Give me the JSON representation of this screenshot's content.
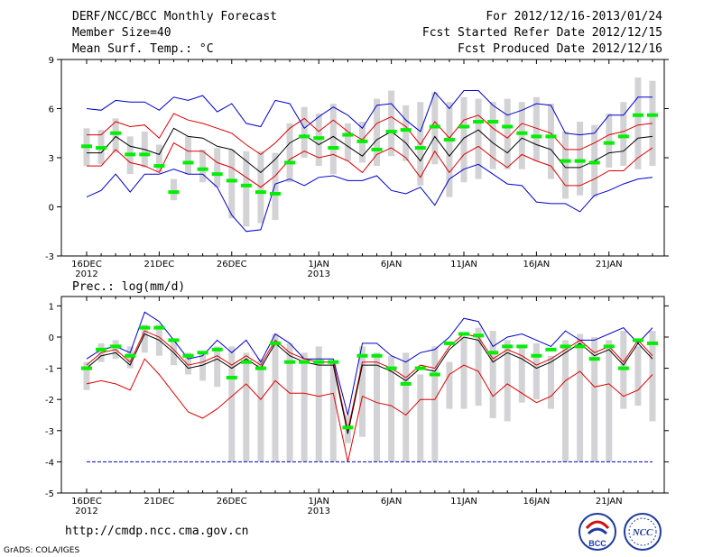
{
  "header": {
    "title": "DERF/NCC/BCC Monthly Forecast",
    "member_size": "Member Size=40",
    "variable": "Mean Surf. Temp.: °C",
    "period": "For 2012/12/16-2013/01/24",
    "started": "Fcst Started Refer Date 2012/12/15",
    "produced": "Fcst Produced Date 2012/12/16"
  },
  "footer": {
    "url": "http://cmdp.ncc.cma.gov.cn",
    "grads": "GrADS: COLA/IGES",
    "logo_bcc": "BCC",
    "logo_ncc": "NCC"
  },
  "colors": {
    "box": "#d3d3d6",
    "median": "#00ee00",
    "mean": "#000000",
    "sd": "#dd0000",
    "extreme": "#0000cc"
  },
  "chart_data": [
    {
      "type": "box",
      "title": "Mean Surf. Temp.: °C",
      "ylim": [
        -3,
        9
      ],
      "yticks": [
        "9",
        "6",
        "3",
        "0",
        "-3"
      ],
      "ytick_values": [
        9,
        6,
        3,
        0,
        -3
      ],
      "xticks": [
        "16DEC",
        "21DEC",
        "26DEC",
        "1JAN",
        "6JAN",
        "11JAN",
        "16JAN",
        "21JAN"
      ],
      "xtick_days": [
        1,
        6,
        11,
        17,
        22,
        27,
        32,
        37
      ],
      "xtick_years": [
        {
          "day": 1,
          "label": "2012"
        },
        {
          "day": 17,
          "label": "2013"
        }
      ],
      "days": 40,
      "box_low": [
        2.5,
        2.6,
        3.3,
        2.0,
        2.4,
        2.1,
        0.4,
        2.0,
        1.5,
        1.2,
        -0.7,
        -1.2,
        -1.0,
        -0.8,
        1.5,
        3.0,
        2.5,
        2.0,
        2.8,
        2.7,
        2.5,
        3.1,
        2.8,
        1.3,
        2.6,
        0.6,
        1.5,
        1.7,
        2.3,
        2.3,
        2.3,
        2.8,
        1.7,
        0.5,
        0.7,
        0.6,
        2.4,
        2.5,
        2.3,
        2.5
      ],
      "box_high": [
        4.8,
        4.7,
        5.4,
        4.3,
        4.6,
        3.8,
        1.7,
        4.3,
        3.5,
        3.6,
        3.5,
        3.4,
        3.4,
        3.3,
        5.1,
        6.1,
        5.7,
        6.3,
        5.1,
        5.2,
        6.6,
        7.1,
        6.2,
        6.4,
        7.0,
        6.4,
        6.7,
        6.6,
        6.4,
        6.6,
        6.4,
        6.7,
        6.3,
        4.6,
        5.2,
        5.0,
        5.7,
        6.4,
        7.9,
        7.7
      ],
      "median": [
        3.7,
        3.6,
        4.5,
        3.2,
        3.2,
        2.5,
        0.9,
        2.7,
        2.3,
        2.0,
        1.6,
        1.3,
        0.9,
        0.8,
        2.7,
        4.3,
        4.2,
        3.6,
        4.4,
        4.0,
        3.5,
        4.6,
        4.7,
        3.6,
        4.9,
        4.1,
        4.9,
        5.2,
        5.2,
        4.9,
        4.5,
        4.3,
        4.3,
        2.8,
        2.8,
        2.7,
        3.9,
        4.3,
        5.6,
        5.6
      ],
      "mean": [
        3.3,
        3.3,
        4.3,
        3.7,
        3.5,
        3.2,
        4.8,
        4.3,
        4.2,
        3.7,
        3.5,
        2.8,
        2.1,
        2.9,
        3.9,
        4.4,
        3.8,
        4.3,
        3.7,
        3.1,
        4.1,
        4.6,
        3.9,
        2.8,
        4.3,
        3.1,
        4.2,
        4.7,
        3.9,
        3.3,
        4.2,
        3.8,
        3.5,
        2.4,
        2.4,
        2.8,
        3.3,
        3.4,
        4.2,
        4.3
      ],
      "sd_high": [
        4.4,
        4.4,
        5.2,
        4.9,
        5.0,
        4.2,
        5.7,
        5.3,
        5.1,
        4.8,
        4.5,
        3.8,
        3.2,
        3.9,
        4.8,
        5.4,
        4.6,
        5.3,
        4.6,
        4.1,
        5.1,
        5.5,
        4.9,
        3.8,
        5.2,
        4.2,
        5.3,
        5.6,
        4.8,
        4.2,
        5.1,
        4.8,
        4.5,
        3.5,
        3.5,
        3.9,
        4.4,
        4.6,
        5.0,
        5.1
      ],
      "sd_low": [
        2.5,
        2.5,
        3.5,
        2.7,
        2.5,
        2.1,
        3.9,
        3.4,
        3.4,
        2.7,
        2.4,
        1.8,
        1.2,
        1.9,
        2.9,
        3.4,
        3.0,
        3.2,
        2.8,
        2.1,
        3.2,
        3.6,
        3.0,
        1.8,
        3.4,
        2.1,
        3.2,
        3.7,
        3.0,
        2.4,
        3.2,
        2.8,
        2.5,
        1.3,
        1.3,
        1.7,
        2.2,
        2.2,
        3.0,
        3.6
      ],
      "max": [
        6.0,
        5.9,
        6.5,
        6.4,
        6.4,
        5.9,
        6.7,
        6.5,
        6.8,
        5.8,
        6.3,
        5.1,
        4.9,
        6.5,
        6.3,
        4.8,
        5.5,
        6.1,
        5.6,
        4.8,
        6.2,
        6.3,
        5.3,
        4.6,
        7.0,
        6.0,
        7.1,
        7.1,
        6.2,
        5.6,
        5.9,
        6.3,
        6.2,
        4.5,
        4.4,
        4.5,
        5.6,
        5.6,
        6.7,
        6.7
      ],
      "min": [
        0.6,
        1.0,
        2.0,
        0.9,
        2.0,
        2.0,
        2.3,
        2.0,
        2.0,
        1.2,
        -0.5,
        -1.5,
        -1.4,
        1.4,
        1.7,
        1.3,
        1.8,
        1.9,
        1.6,
        1.6,
        1.9,
        1.0,
        0.8,
        1.2,
        0.1,
        1.7,
        2.3,
        2.6,
        2.0,
        1.4,
        1.3,
        0.3,
        0.2,
        0.2,
        -0.3,
        0.7,
        1.0,
        1.4,
        1.7,
        1.8
      ]
    },
    {
      "type": "box",
      "title": "Prec.: log(mm/d)",
      "ylim": [
        -5,
        1.3
      ],
      "yticks": [
        "1",
        "0",
        "-1",
        "-2",
        "-3",
        "-4",
        "-5"
      ],
      "ytick_values": [
        1,
        0,
        -1,
        -2,
        -3,
        -4,
        -5
      ],
      "xticks": [
        "16DEC",
        "21DEC",
        "26DEC",
        "1JAN",
        "6JAN",
        "11JAN",
        "16JAN",
        "21JAN"
      ],
      "xtick_days": [
        1,
        6,
        11,
        17,
        22,
        27,
        32,
        37
      ],
      "xtick_years": [
        {
          "day": 1,
          "label": "2012"
        },
        {
          "day": 17,
          "label": "2013"
        }
      ],
      "days": 40,
      "reference_line": -4,
      "box_low": [
        -1.7,
        -0.8,
        -0.7,
        -1.0,
        -0.5,
        -0.6,
        -0.9,
        -1.2,
        -1.4,
        -1.6,
        -4.0,
        -4.0,
        -4.0,
        -4.0,
        -4.0,
        -4.0,
        -4.0,
        -4.0,
        -3.4,
        -3.2,
        -4.0,
        -4.0,
        -4.0,
        -4.0,
        -4.0,
        -2.3,
        -2.3,
        -2.2,
        -2.6,
        -2.7,
        -2.1,
        -2.0,
        -2.3,
        -4.0,
        -4.0,
        -4.0,
        -4.0,
        -2.3,
        -2.2,
        -2.7
      ],
      "box_high": [
        -0.8,
        -0.2,
        -0.1,
        -0.3,
        0.4,
        0.4,
        -0.1,
        -0.5,
        -0.5,
        -0.3,
        -0.3,
        -0.5,
        -0.7,
        0.1,
        -0.2,
        -0.5,
        -0.3,
        -0.8,
        -2.5,
        -0.3,
        -0.5,
        -0.6,
        -0.5,
        -1.2,
        -0.3,
        -0.8,
        0.0,
        0.3,
        0.2,
        -0.1,
        -0.3,
        -0.2,
        -0.6,
        -0.1,
        0.1,
        0.0,
        -0.1,
        0.2,
        -0.3,
        0.2
      ],
      "median": [
        -1.0,
        -0.4,
        -0.3,
        -0.6,
        0.3,
        0.3,
        -0.1,
        -0.6,
        -0.5,
        -0.4,
        -1.3,
        -0.8,
        -1.0,
        -0.2,
        -0.8,
        -0.8,
        -0.8,
        -0.8,
        -2.9,
        -0.6,
        -0.6,
        -1.0,
        -1.5,
        -1.0,
        -1.2,
        -0.2,
        0.1,
        0.05,
        -0.5,
        -0.3,
        -0.3,
        -0.6,
        -0.4,
        -0.3,
        -0.3,
        -0.7,
        -0.3,
        -1.0,
        -0.1,
        -0.2
      ],
      "mean": [
        -1.0,
        -0.6,
        -0.5,
        -0.9,
        0.1,
        -0.1,
        -0.5,
        -1.0,
        -0.9,
        -0.7,
        -1.0,
        -0.7,
        -1.0,
        -0.2,
        -0.6,
        -0.8,
        -0.9,
        -0.9,
        -3.1,
        -0.9,
        -0.9,
        -1.1,
        -1.4,
        -1.0,
        -1.1,
        -0.4,
        0.0,
        -0.1,
        -0.8,
        -0.5,
        -0.7,
        -1.0,
        -0.8,
        -0.5,
        -0.2,
        -0.6,
        -0.4,
        -0.9,
        -0.2,
        -0.7
      ],
      "sd_high": [
        -0.9,
        -0.5,
        -0.4,
        -0.8,
        0.2,
        0.0,
        -0.4,
        -0.9,
        -0.8,
        -0.6,
        -0.9,
        -0.6,
        -0.9,
        -0.1,
        -0.5,
        -0.7,
        -0.8,
        -0.8,
        -3.0,
        -0.8,
        -0.8,
        -1.0,
        -1.3,
        -0.9,
        -1.0,
        -0.3,
        0.1,
        0.0,
        -0.7,
        -0.4,
        -0.6,
        -0.9,
        -0.7,
        -0.4,
        -0.1,
        -0.5,
        -0.3,
        -0.8,
        -0.1,
        -0.6
      ],
      "sd_low": [
        -1.5,
        -1.4,
        -1.5,
        -1.7,
        -0.7,
        -1.2,
        -1.8,
        -2.4,
        -2.6,
        -2.3,
        -1.9,
        -1.5,
        -2.0,
        -1.4,
        -1.8,
        -1.8,
        -1.9,
        -1.8,
        -4.0,
        -1.9,
        -2.1,
        -2.2,
        -2.5,
        -2.0,
        -2.0,
        -1.2,
        -0.9,
        -1.1,
        -1.9,
        -1.5,
        -1.8,
        -2.1,
        -1.9,
        -1.4,
        -1.1,
        -1.6,
        -1.5,
        -1.9,
        -1.7,
        -1.2
      ],
      "max": [
        -0.7,
        -0.4,
        -0.3,
        -0.5,
        0.8,
        0.5,
        -0.1,
        -0.7,
        -0.6,
        -0.1,
        -0.5,
        -0.1,
        -0.8,
        0.1,
        -0.2,
        -0.7,
        -0.7,
        -0.7,
        -2.5,
        -0.2,
        -0.2,
        -0.6,
        -0.8,
        -0.5,
        -0.4,
        0.0,
        0.6,
        0.5,
        -0.3,
        0.0,
        0.1,
        -0.1,
        -0.3,
        0.2,
        -0.1,
        -0.1,
        0.1,
        0.3,
        -0.2,
        0.3
      ],
      "min": [
        -4.0,
        -4.0,
        -4.0,
        -4.0,
        -4.0,
        -4.0,
        -4.0,
        -4.0,
        -4.0,
        -4.0,
        -4.0,
        -4.0,
        -4.0,
        -4.0,
        -4.0,
        -4.0,
        -4.0,
        -4.0,
        -4.0,
        -4.0,
        -4.0,
        -4.0,
        -4.0,
        -4.0,
        -4.0,
        -4.0,
        -4.0,
        -4.0,
        -4.0,
        -4.0,
        -4.0,
        -4.0,
        -4.0,
        -4.0,
        -4.0,
        -4.0,
        -4.0,
        -4.0,
        -4.0,
        -4.0
      ]
    }
  ]
}
